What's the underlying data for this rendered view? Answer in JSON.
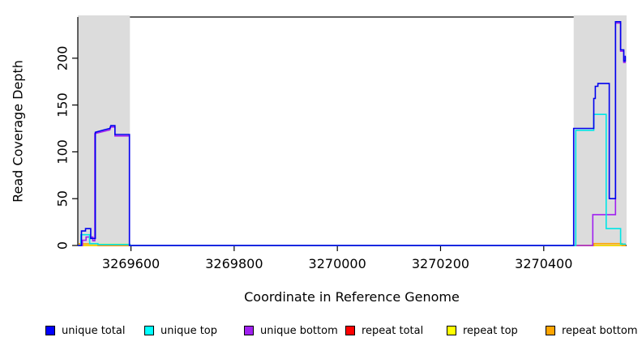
{
  "axes": {
    "x_title": "Coordinate in Reference Genome",
    "y_title": "Read Coverage Depth"
  },
  "chart_data": {
    "type": "line",
    "title": "",
    "xlabel": "Coordinate in Reference Genome",
    "ylabel": "Read Coverage Depth",
    "xlim": [
      3269497,
      3270559
    ],
    "ylim": [
      0,
      244
    ],
    "x_ticks": [
      3269600,
      3269800,
      3270000,
      3270200,
      3270400
    ],
    "y_ticks": [
      0,
      50,
      100,
      150,
      200
    ],
    "grid": false,
    "legend_position": "bottom",
    "background_color": "#FFFFFF",
    "shaded_region_color": "#DCDCDC",
    "shaded_regions": [
      {
        "from": 3269497,
        "to": 3269598
      },
      {
        "from": 3270458,
        "to": 3270559
      }
    ],
    "series": [
      {
        "name": "unique total",
        "color": "#0000EE",
        "points": [
          [
            3269497,
            0
          ],
          [
            3269504,
            0
          ],
          [
            3269504,
            15.5
          ],
          [
            3269512,
            15.5
          ],
          [
            3269512,
            18
          ],
          [
            3269522,
            18
          ],
          [
            3269522,
            7.5
          ],
          [
            3269531,
            7.5
          ],
          [
            3269531,
            121
          ],
          [
            3269559,
            125
          ],
          [
            3269561,
            128
          ],
          [
            3269569,
            128
          ],
          [
            3269569,
            118.5
          ],
          [
            3269597,
            118.5
          ],
          [
            3269597,
            0
          ],
          [
            3270458,
            0
          ],
          [
            3270458,
            125
          ],
          [
            3270497,
            125
          ],
          [
            3270497,
            157
          ],
          [
            3270500,
            157
          ],
          [
            3270500,
            170
          ],
          [
            3270505,
            170
          ],
          [
            3270505,
            173
          ],
          [
            3270527,
            173
          ],
          [
            3270527,
            50
          ],
          [
            3270539,
            50
          ],
          [
            3270539,
            239
          ],
          [
            3270549,
            239
          ],
          [
            3270549,
            209
          ],
          [
            3270555,
            209
          ],
          [
            3270555,
            197
          ],
          [
            3270558,
            197
          ],
          [
            3270558,
            202
          ],
          [
            3270559,
            202
          ]
        ]
      },
      {
        "name": "unique top",
        "color": "#00E5E5",
        "points": [
          [
            3269497,
            0
          ],
          [
            3269503,
            0
          ],
          [
            3269503,
            11.5
          ],
          [
            3269520,
            11.5
          ],
          [
            3269520,
            2
          ],
          [
            3269536,
            2
          ],
          [
            3269536,
            1
          ],
          [
            3269598,
            1
          ],
          [
            3269598,
            0
          ],
          [
            3270462,
            0
          ],
          [
            3270462,
            123
          ],
          [
            3270497,
            123
          ],
          [
            3270497,
            140
          ],
          [
            3270521,
            140
          ],
          [
            3270521,
            18
          ],
          [
            3270549,
            18
          ],
          [
            3270549,
            1.5
          ],
          [
            3270559,
            1.5
          ]
        ]
      },
      {
        "name": "unique bottom",
        "color": "#A020F0",
        "points": [
          [
            3269497,
            0
          ],
          [
            3269506,
            0
          ],
          [
            3269506,
            5.5
          ],
          [
            3269513,
            5.5
          ],
          [
            3269513,
            9
          ],
          [
            3269526,
            9
          ],
          [
            3269526,
            5
          ],
          [
            3269530,
            5
          ],
          [
            3269530,
            119.5
          ],
          [
            3269559,
            123.5
          ],
          [
            3269561,
            126.5
          ],
          [
            3269569,
            126.5
          ],
          [
            3269569,
            117
          ],
          [
            3269597,
            117
          ],
          [
            3269597,
            0
          ],
          [
            3270495,
            0
          ],
          [
            3270495,
            33
          ],
          [
            3270539,
            33
          ],
          [
            3270539,
            237.5
          ],
          [
            3270549,
            237.5
          ],
          [
            3270549,
            207.5
          ],
          [
            3270555,
            207.5
          ],
          [
            3270555,
            195.5
          ],
          [
            3270559,
            195.5
          ]
        ]
      },
      {
        "name": "repeat total",
        "color": "#E00000",
        "points": [
          [
            3269497,
            0
          ],
          [
            3270559,
            0
          ]
        ]
      },
      {
        "name": "repeat top",
        "color": "#FFFF00",
        "points": [
          [
            3269497,
            0
          ],
          [
            3269536,
            0
          ],
          [
            3269536,
            1.2
          ],
          [
            3269598,
            1.2
          ],
          [
            3269598,
            0
          ],
          [
            3270559,
            0
          ]
        ]
      },
      {
        "name": "repeat bottom",
        "color": "#FFA500",
        "points": [
          [
            3269497,
            0
          ],
          [
            3269500,
            0
          ],
          [
            3269500,
            1.8
          ],
          [
            3269536,
            1.8
          ],
          [
            3269536,
            0
          ],
          [
            3270497,
            0
          ],
          [
            3270497,
            2
          ],
          [
            3270552,
            2
          ],
          [
            3270552,
            0
          ],
          [
            3270559,
            0
          ]
        ]
      }
    ]
  }
}
